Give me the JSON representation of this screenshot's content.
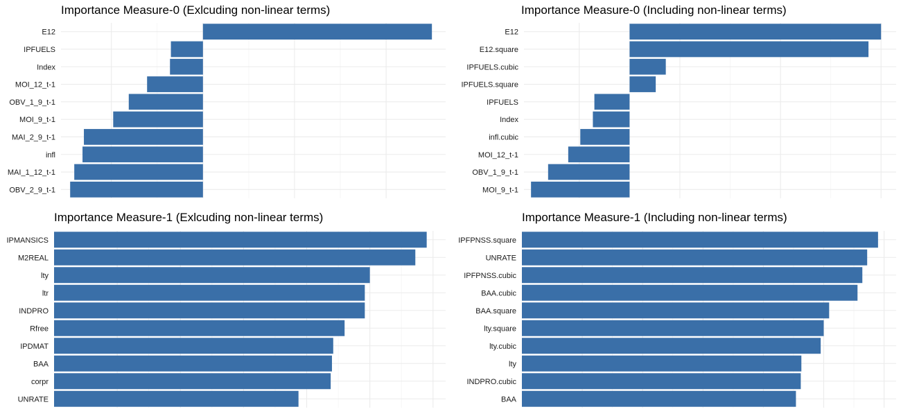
{
  "chart_data": [
    {
      "type": "bar",
      "orientation": "horizontal",
      "title": "Importance Measure-0 (Exlcuding non-linear terms)",
      "categories": [
        "E12",
        "IPFUELS",
        "Index",
        "MOI_12_t-1",
        "OBV_1_9_t-1",
        "MOI_9_t-1",
        "MAI_2_9_t-1",
        "infl",
        "MAI_1_12_t-1",
        "OBV_2_9_t-1"
      ],
      "values": [
        5.0,
        -0.7,
        -0.72,
        -1.22,
        -1.62,
        -1.96,
        -2.6,
        -2.63,
        -2.81,
        -2.9
      ],
      "xlim": [
        -3.1,
        5.3
      ],
      "x_grid": [
        -2,
        0,
        2,
        4
      ],
      "color": "#3a6fa8",
      "grid": true
    },
    {
      "type": "bar",
      "orientation": "horizontal",
      "title": "Importance Measure-0 (Including non-linear terms)",
      "categories": [
        "E12",
        "E12.square",
        "IPFUELS.cubic",
        "IPFUELS.square",
        "IPFUELS",
        "Index",
        "infl.cubic",
        "MOI_12_t-1",
        "OBV_1_9_t-1",
        "MOI_9_t-1"
      ],
      "values": [
        5.0,
        4.75,
        0.72,
        0.52,
        -0.7,
        -0.73,
        -0.98,
        -1.22,
        -1.62,
        -1.96
      ],
      "xlim": [
        -2.1,
        5.3
      ],
      "x_grid": [
        -1,
        1,
        3,
        5
      ],
      "color": "#3a6fa8",
      "grid": true
    },
    {
      "type": "bar",
      "orientation": "horizontal",
      "title": "Importance Measure-1 (Exlcuding non-linear terms)",
      "categories": [
        "IPMANSICS",
        "M2REAL",
        "lty",
        "ltr",
        "INDPRO",
        "Rfree",
        "IPDMAT",
        "BAA",
        "corpr",
        "UNRATE"
      ],
      "values": [
        5.9,
        5.72,
        5.0,
        4.92,
        4.92,
        4.6,
        4.42,
        4.4,
        4.38,
        3.87
      ],
      "xlim": [
        0,
        6.2
      ],
      "x_grid": [
        1,
        2,
        3,
        4,
        5,
        6
      ],
      "color": "#3a6fa8",
      "grid": true
    },
    {
      "type": "bar",
      "orientation": "horizontal",
      "title": "Importance Measure-1 (Including non-linear terms)",
      "categories": [
        "IPFPNSS.square",
        "UNRATE",
        "IPFPNSS.cubic",
        "BAA.cubic",
        "BAA.square",
        "lty.square",
        "lty.cubic",
        "lty",
        "INDPRO.cubic",
        "BAA"
      ],
      "values": [
        5.9,
        5.72,
        5.64,
        5.56,
        5.09,
        5.0,
        4.95,
        4.63,
        4.62,
        4.54
      ],
      "xlim": [
        0,
        6.2
      ],
      "x_grid": [
        1,
        2,
        3,
        4,
        5,
        6
      ],
      "color": "#3a6fa8",
      "grid": true
    }
  ]
}
